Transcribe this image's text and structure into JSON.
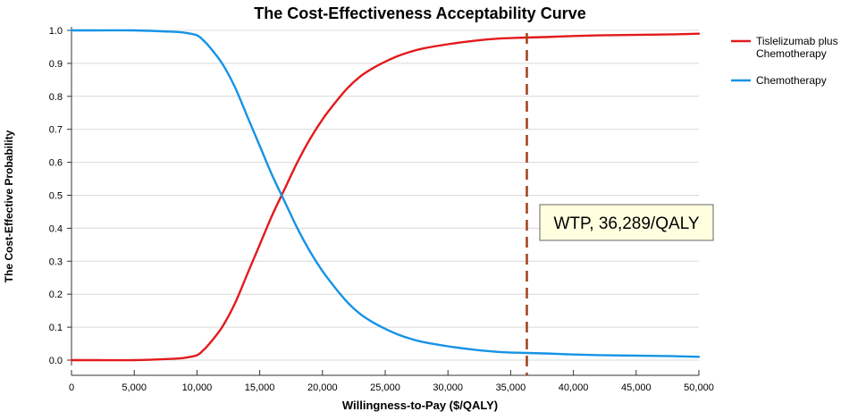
{
  "chart_data": {
    "type": "line",
    "title": "The Cost-Effectiveness Acceptability Curve",
    "xlabel": "Willingness-to-Pay ($/QALY)",
    "ylabel": "The Cost-Effective Probability",
    "xlim": [
      0,
      50000
    ],
    "ylim": [
      0,
      1.0
    ],
    "grid": true,
    "legend_position": "top-right",
    "x_ticks": [
      0,
      5000,
      10000,
      15000,
      20000,
      25000,
      30000,
      35000,
      40000,
      45000,
      50000
    ],
    "x_tick_labels": [
      "0",
      "5,000",
      "10,000",
      "15,000",
      "20,000",
      "25,000",
      "30,000",
      "35,000",
      "40,000",
      "45,000",
      "50,000"
    ],
    "y_ticks": [
      0,
      0.1,
      0.2,
      0.3,
      0.4,
      0.5,
      0.6,
      0.7,
      0.8,
      0.9,
      1.0
    ],
    "y_tick_labels": [
      "0.0",
      "0.1",
      "0.2",
      "0.3",
      "0.4",
      "0.5",
      "0.6",
      "0.7",
      "0.8",
      "0.9",
      "1.0"
    ],
    "series": [
      {
        "name": "Tislelizumab plus Chemotherapy",
        "legend_lines": [
          "Tislelizumab plus",
          "Chemotherapy"
        ],
        "color": "#e31a1c",
        "x": [
          0,
          2000,
          5000,
          8000,
          9000,
          10000,
          10500,
          11000,
          12000,
          13000,
          14000,
          15000,
          16000,
          17000,
          18000,
          19000,
          20000,
          21000,
          22000,
          23000,
          24000,
          25000,
          26000,
          27000,
          28000,
          30000,
          32000,
          34000,
          36000,
          38000,
          40000,
          42000,
          44000,
          46000,
          48000,
          50000
        ],
        "values": [
          0.0,
          0.0,
          0.0,
          0.004,
          0.007,
          0.015,
          0.03,
          0.05,
          0.1,
          0.17,
          0.26,
          0.35,
          0.44,
          0.52,
          0.6,
          0.67,
          0.73,
          0.78,
          0.825,
          0.86,
          0.885,
          0.905,
          0.922,
          0.935,
          0.945,
          0.958,
          0.968,
          0.975,
          0.978,
          0.98,
          0.983,
          0.985,
          0.986,
          0.987,
          0.988,
          0.99
        ]
      },
      {
        "name": "Chemotherapy",
        "legend_lines": [
          "Chemotherapy"
        ],
        "color": "#1593e6",
        "x": [
          0,
          2000,
          5000,
          8000,
          9000,
          10000,
          10500,
          11000,
          12000,
          13000,
          14000,
          15000,
          16000,
          17000,
          18000,
          19000,
          20000,
          21000,
          22000,
          23000,
          24000,
          25000,
          26000,
          27000,
          28000,
          30000,
          32000,
          34000,
          36000,
          38000,
          40000,
          42000,
          44000,
          46000,
          48000,
          50000
        ],
        "values": [
          1.0,
          1.0,
          1.0,
          0.996,
          0.993,
          0.985,
          0.97,
          0.95,
          0.9,
          0.83,
          0.74,
          0.65,
          0.56,
          0.48,
          0.4,
          0.33,
          0.27,
          0.22,
          0.175,
          0.14,
          0.115,
          0.095,
          0.078,
          0.065,
          0.055,
          0.042,
          0.032,
          0.025,
          0.022,
          0.02,
          0.017,
          0.015,
          0.014,
          0.013,
          0.012,
          0.01
        ]
      }
    ],
    "threshold": {
      "x": 36289,
      "color": "#a0401a",
      "style": "dashed",
      "label": "WTP, 36,289/QALY"
    }
  },
  "colors": {
    "grid": "#d9d9d9",
    "axis": "#333333",
    "text": "#000000",
    "annotation_fill": "#ffffe0",
    "annotation_border": "#666666"
  }
}
